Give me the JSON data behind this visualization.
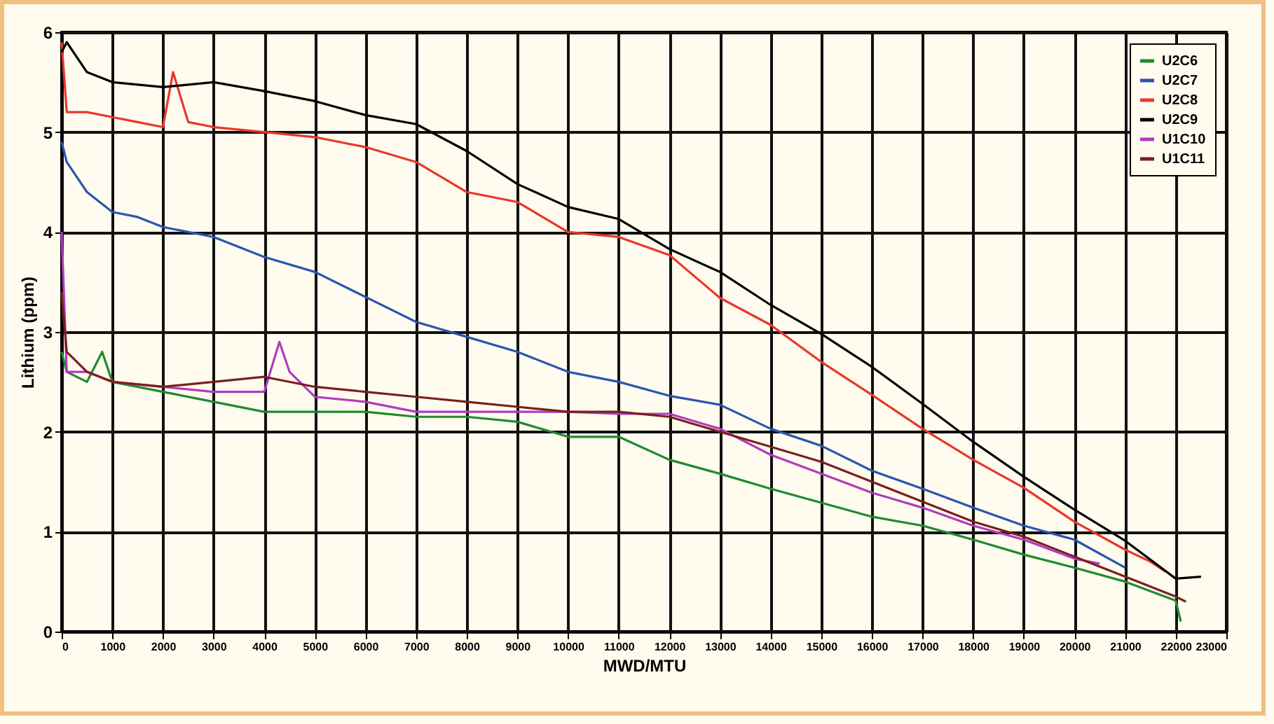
{
  "chart_data": {
    "type": "line",
    "xlabel": "MWD/MTU",
    "ylabel": "Lithium (ppm)",
    "xlim": [
      0,
      23000
    ],
    "ylim": [
      0,
      6
    ],
    "xticks": [
      0,
      1000,
      2000,
      3000,
      4000,
      5000,
      6000,
      7000,
      8000,
      9000,
      10000,
      11000,
      12000,
      13000,
      14000,
      15000,
      16000,
      17000,
      18000,
      19000,
      20000,
      21000,
      22000,
      23000
    ],
    "yticks": [
      0,
      1,
      2,
      3,
      4,
      5,
      6
    ],
    "grid": true,
    "legend": "top right",
    "series": [
      {
        "name": "U2C6",
        "color": "#1f8a2e",
        "x": [
          0,
          100,
          500,
          800,
          1000,
          2000,
          3000,
          4000,
          5000,
          6000,
          7000,
          8000,
          9000,
          10000,
          11000,
          12000,
          13000,
          14000,
          15000,
          16000,
          17000,
          18000,
          19000,
          20000,
          21000,
          22000,
          22100
        ],
        "values": [
          2.8,
          2.6,
          2.5,
          2.8,
          2.5,
          2.4,
          2.3,
          2.2,
          2.2,
          2.2,
          2.15,
          2.15,
          2.1,
          1.95,
          1.95,
          1.72,
          1.58,
          1.43,
          1.29,
          1.15,
          1.06,
          0.92,
          0.77,
          0.64,
          0.5,
          0.31,
          0.1
        ]
      },
      {
        "name": "U2C7",
        "color": "#2a55b0",
        "x": [
          0,
          100,
          500,
          1000,
          1500,
          2000,
          3000,
          4000,
          5000,
          6000,
          7000,
          8000,
          9000,
          10000,
          11000,
          12000,
          13000,
          14000,
          15000,
          16000,
          17000,
          18000,
          19000,
          20000,
          21000
        ],
        "values": [
          4.9,
          4.7,
          4.4,
          4.2,
          4.15,
          4.05,
          3.95,
          3.75,
          3.6,
          3.35,
          3.1,
          2.95,
          2.8,
          2.6,
          2.5,
          2.36,
          2.27,
          2.03,
          1.86,
          1.61,
          1.43,
          1.24,
          1.06,
          0.92,
          0.64
        ]
      },
      {
        "name": "U2C8",
        "color": "#e8372a",
        "x": [
          0,
          100,
          500,
          1000,
          1500,
          2000,
          2200,
          2500,
          3000,
          4000,
          5000,
          6000,
          7000,
          8000,
          9000,
          10000,
          11000,
          12000,
          13000,
          14000,
          15000,
          16000,
          17000,
          18000,
          19000,
          20000,
          21000,
          21500,
          21800
        ],
        "values": [
          5.9,
          5.2,
          5.2,
          5.15,
          5.1,
          5.05,
          5.6,
          5.1,
          5.05,
          5.0,
          4.95,
          4.85,
          4.7,
          4.4,
          4.3,
          4.0,
          3.95,
          3.77,
          3.34,
          3.07,
          2.7,
          2.37,
          2.03,
          1.72,
          1.44,
          1.1,
          0.82,
          0.7,
          0.6
        ]
      },
      {
        "name": "U2C9",
        "color": "#000000",
        "x": [
          0,
          100,
          500,
          1000,
          2000,
          3000,
          4000,
          5000,
          6000,
          7000,
          8000,
          9000,
          10000,
          11000,
          12000,
          13000,
          14000,
          15000,
          16000,
          17000,
          18000,
          19000,
          20000,
          21000,
          22000,
          22500
        ],
        "values": [
          5.8,
          5.9,
          5.6,
          5.5,
          5.45,
          5.5,
          5.41,
          5.31,
          5.17,
          5.08,
          4.81,
          4.48,
          4.25,
          4.13,
          3.83,
          3.6,
          3.27,
          2.98,
          2.65,
          2.28,
          1.9,
          1.55,
          1.22,
          0.91,
          0.53,
          0.55
        ]
      },
      {
        "name": "U1C10",
        "color": "#b03cc0",
        "x": [
          0,
          100,
          500,
          1000,
          2000,
          3000,
          4000,
          4300,
          4500,
          5000,
          6000,
          7000,
          8000,
          9000,
          10000,
          11000,
          12000,
          13000,
          14000,
          15000,
          16000,
          17000,
          18000,
          19000,
          20000,
          20500
        ],
        "values": [
          4.0,
          2.6,
          2.6,
          2.5,
          2.45,
          2.4,
          2.4,
          2.9,
          2.6,
          2.35,
          2.3,
          2.2,
          2.2,
          2.2,
          2.2,
          2.18,
          2.18,
          2.03,
          1.77,
          1.58,
          1.39,
          1.24,
          1.06,
          0.92,
          0.73,
          0.68
        ]
      },
      {
        "name": "U1C11",
        "color": "#7a1f1f",
        "x": [
          0,
          100,
          500,
          1000,
          2000,
          3000,
          4000,
          5000,
          6000,
          7000,
          8000,
          9000,
          10000,
          11000,
          12000,
          13000,
          14000,
          15000,
          16000,
          17000,
          18000,
          19000,
          20000,
          21000,
          22000,
          22200
        ],
        "values": [
          3.4,
          2.8,
          2.6,
          2.5,
          2.45,
          2.5,
          2.55,
          2.45,
          2.4,
          2.35,
          2.3,
          2.25,
          2.2,
          2.2,
          2.15,
          2.0,
          1.85,
          1.7,
          1.5,
          1.3,
          1.1,
          0.95,
          0.75,
          0.55,
          0.35,
          0.3
        ]
      }
    ]
  }
}
